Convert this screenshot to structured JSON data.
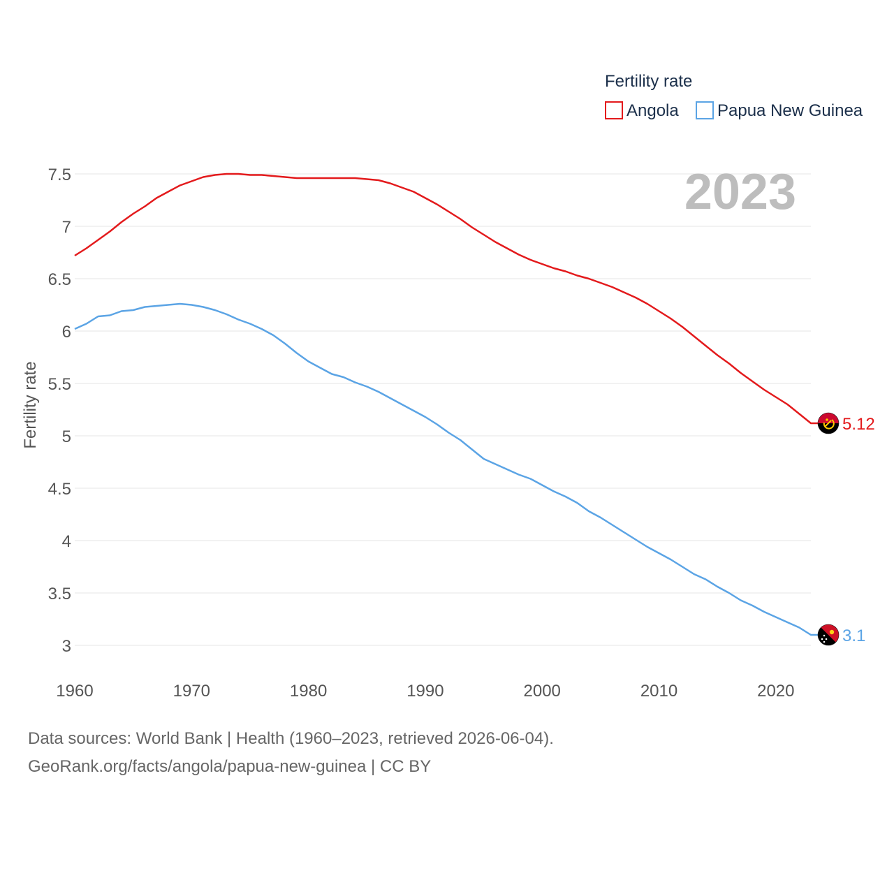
{
  "legend": {
    "title": "Fertility rate",
    "items": [
      {
        "label": "Angola",
        "color": "#e31a1c"
      },
      {
        "label": "Papua New Guinea",
        "color": "#5ba4e5"
      }
    ]
  },
  "overlay_year": "2023",
  "sources": {
    "line1": "Data sources: World Bank | Health (1960–2023, retrieved 2026-06-04).",
    "line2": "GeoRank.org/facts/angola/papua-new-guinea | CC BY"
  },
  "chart_data": {
    "type": "line",
    "title": "",
    "xlabel": "",
    "ylabel": "Fertility rate",
    "xlim": [
      1960,
      2023
    ],
    "ylim": [
      3,
      7.5
    ],
    "x_ticks": [
      "1960",
      "1970",
      "1980",
      "1990",
      "2000",
      "2010",
      "2020"
    ],
    "y_ticks": [
      "3",
      "3.5",
      "4",
      "4.5",
      "5",
      "5.5",
      "6",
      "6.5",
      "7",
      "7.5"
    ],
    "grid": true,
    "legend_position": "top-right",
    "x": [
      1960,
      1961,
      1962,
      1963,
      1964,
      1965,
      1966,
      1967,
      1968,
      1969,
      1970,
      1971,
      1972,
      1973,
      1974,
      1975,
      1976,
      1977,
      1978,
      1979,
      1980,
      1981,
      1982,
      1983,
      1984,
      1985,
      1986,
      1987,
      1988,
      1989,
      1990,
      1991,
      1992,
      1993,
      1994,
      1995,
      1996,
      1997,
      1998,
      1999,
      2000,
      2001,
      2002,
      2003,
      2004,
      2005,
      2006,
      2007,
      2008,
      2009,
      2010,
      2011,
      2012,
      2013,
      2014,
      2015,
      2016,
      2017,
      2018,
      2019,
      2020,
      2021,
      2022,
      2023
    ],
    "series": [
      {
        "name": "Angola",
        "color": "#e31a1c",
        "end_label": "5.12",
        "values": [
          6.72,
          6.79,
          6.87,
          6.95,
          7.04,
          7.12,
          7.19,
          7.27,
          7.33,
          7.39,
          7.43,
          7.47,
          7.49,
          7.5,
          7.5,
          7.49,
          7.49,
          7.48,
          7.47,
          7.46,
          7.46,
          7.46,
          7.46,
          7.46,
          7.46,
          7.45,
          7.44,
          7.41,
          7.37,
          7.33,
          7.27,
          7.21,
          7.14,
          7.07,
          6.99,
          6.92,
          6.85,
          6.79,
          6.73,
          6.68,
          6.64,
          6.6,
          6.57,
          6.53,
          6.5,
          6.46,
          6.42,
          6.37,
          6.32,
          6.26,
          6.19,
          6.12,
          6.04,
          5.95,
          5.86,
          5.77,
          5.69,
          5.6,
          5.52,
          5.44,
          5.37,
          5.3,
          5.21,
          5.12
        ]
      },
      {
        "name": "Papua New Guinea",
        "color": "#5ba4e5",
        "end_label": "3.1",
        "values": [
          6.02,
          6.07,
          6.14,
          6.15,
          6.19,
          6.2,
          6.23,
          6.24,
          6.25,
          6.26,
          6.25,
          6.23,
          6.2,
          6.16,
          6.11,
          6.07,
          6.02,
          5.96,
          5.88,
          5.79,
          5.71,
          5.65,
          5.59,
          5.56,
          5.51,
          5.47,
          5.42,
          5.36,
          5.3,
          5.24,
          5.18,
          5.11,
          5.03,
          4.96,
          4.87,
          4.78,
          4.73,
          4.68,
          4.63,
          4.59,
          4.53,
          4.47,
          4.42,
          4.36,
          4.28,
          4.22,
          4.15,
          4.08,
          4.01,
          3.94,
          3.88,
          3.82,
          3.75,
          3.68,
          3.63,
          3.56,
          3.5,
          3.43,
          3.38,
          3.32,
          3.27,
          3.22,
          3.17,
          3.1
        ]
      }
    ]
  }
}
